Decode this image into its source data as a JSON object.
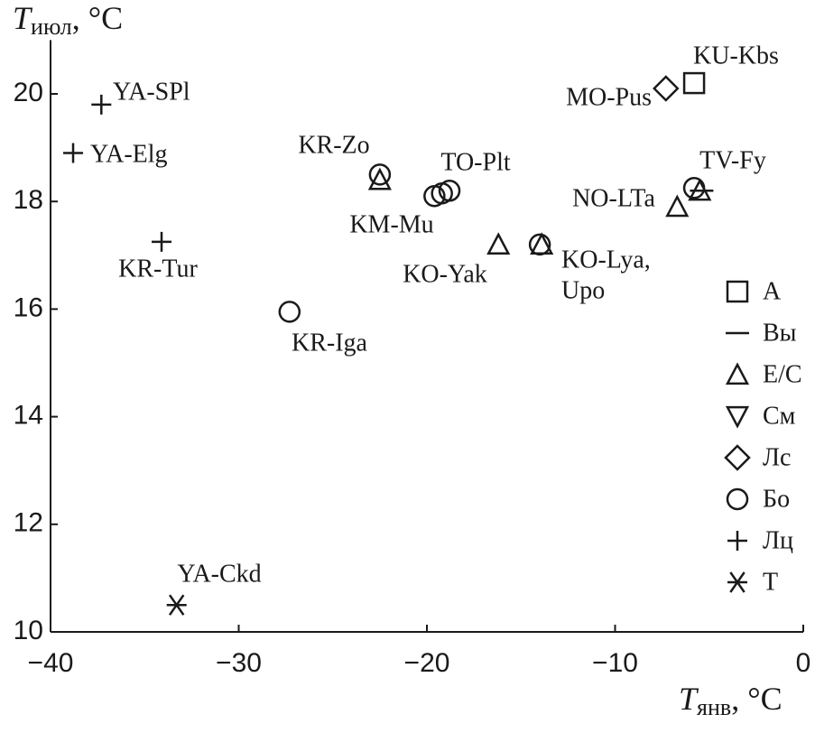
{
  "chart_data": {
    "type": "scatter",
    "xlabel": {
      "symbol": "T",
      "subscript": "янв",
      "unit": ", °C"
    },
    "ylabel": {
      "symbol": "T",
      "subscript": "июл",
      "unit": ", °C"
    },
    "xlim": [
      -40,
      0
    ],
    "xticks": [
      {
        "value": -40,
        "label": "−40"
      },
      {
        "value": -30,
        "label": "−30"
      },
      {
        "value": -20,
        "label": "−20"
      },
      {
        "value": -10,
        "label": "−10"
      },
      0
    ],
    "ylim": [
      10,
      21
    ],
    "yticks": [
      10,
      12,
      14,
      16,
      18,
      20
    ],
    "grid": false,
    "legend": "right",
    "series": [
      {
        "name": "А",
        "marker": "square",
        "color": "#1a1a1a",
        "x": [
          -5.8
        ],
        "y": [
          20.2
        ]
      },
      {
        "name": "Вы",
        "marker": "dash",
        "color": "#1a1a1a",
        "x": [
          -5.4
        ],
        "y": [
          18.2
        ]
      },
      {
        "name": "Е/С",
        "marker": "triangle",
        "color": "#1a1a1a",
        "x": [
          -22.5,
          -16.2,
          -13.9,
          -6.7,
          -5.5
        ],
        "y": [
          18.4,
          17.2,
          17.2,
          17.9,
          18.2
        ]
      },
      {
        "name": "См",
        "marker": "triangle-down",
        "color": "#1a1a1a",
        "x": [],
        "y": []
      },
      {
        "name": "Лс",
        "marker": "diamond",
        "color": "#1a1a1a",
        "x": [
          -7.3
        ],
        "y": [
          20.1
        ]
      },
      {
        "name": "Бо",
        "marker": "circle",
        "color": "#1a1a1a",
        "x": [
          -22.5,
          -19.6,
          -19.2,
          -18.8,
          -27.3,
          -14.0,
          -5.8
        ],
        "y": [
          18.5,
          18.1,
          18.15,
          18.2,
          15.95,
          17.2,
          18.25
        ]
      },
      {
        "name": "Лц",
        "marker": "plus",
        "color": "#1a1a1a",
        "x": [
          -37.3,
          -38.8,
          -34.1
        ],
        "y": [
          19.8,
          18.9,
          17.25
        ]
      },
      {
        "name": "Т",
        "marker": "asterisk",
        "color": "#1a1a1a",
        "x": [
          -33.3
        ],
        "y": [
          10.5
        ]
      }
    ],
    "annotations": [
      "KU-Kbs",
      "MO-Pus",
      "YA-SPl",
      "YA-Elg",
      "KR-Zo",
      "TO-Plt",
      "KM-Mu",
      "TV-Fy",
      "NO-LTa",
      "KR-Tur",
      "KO-Yak",
      "KO-Lya,",
      "Upo",
      "KR-Iga",
      "YA-Ckd"
    ]
  }
}
